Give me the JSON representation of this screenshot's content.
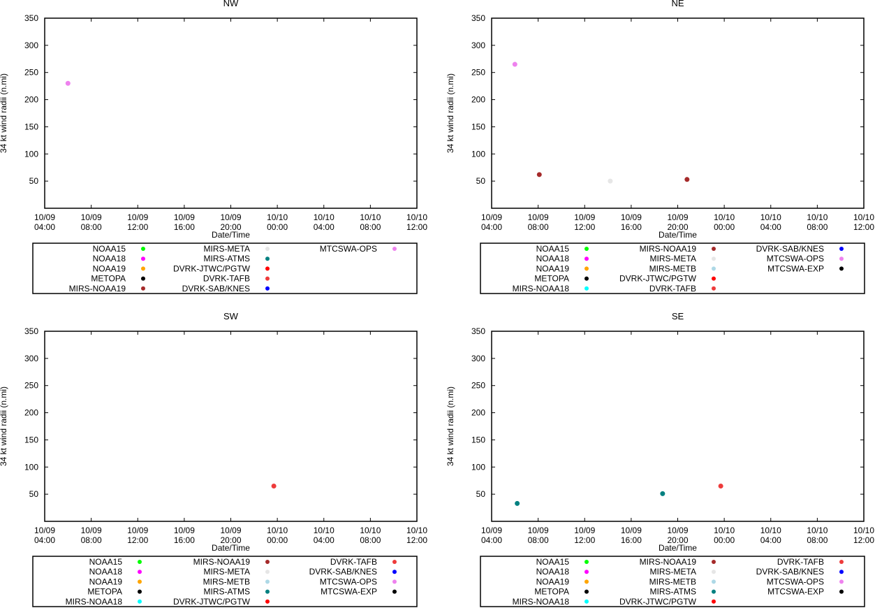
{
  "figure": {
    "xlabel": "Date/Time",
    "ylabel": "34 kt wind radii (n.mi)"
  },
  "colors": {
    "NOAA15": "#00ff00",
    "NOAA18": "#ff00ff",
    "NOAA19": "#ffa500",
    "METOPA": "#000000",
    "MIRS-NOAA18": "#00ffff",
    "MIRS-NOAA19": "#a52a2a",
    "MIRS-META": "#e6e6e6",
    "MIRS-METB": "#add8e6",
    "MIRS-ATMS": "#008080",
    "DVRK-JTWC/PGTW": "#ff0000",
    "DVRK-TAFB": "#ee3b3b",
    "DVRK-SAB/KNES": "#0000ff",
    "MTCSWA-OPS": "#ee82ee",
    "MTCSWA-EXP": "#000000"
  },
  "chart_data": [
    {
      "type": "scatter",
      "title": "NW",
      "xlabel": "Date/Time",
      "ylabel": "34 kt wind radii (n.mi)",
      "x_ticks": [
        [
          "10/09",
          "04:00"
        ],
        [
          "10/09",
          "08:00"
        ],
        [
          "10/09",
          "12:00"
        ],
        [
          "10/09",
          "16:00"
        ],
        [
          "10/09",
          "20:00"
        ],
        [
          "10/10",
          "00:00"
        ],
        [
          "10/10",
          "04:00"
        ],
        [
          "10/10",
          "08:00"
        ],
        [
          "10/10",
          "12:00"
        ]
      ],
      "x_range_hours": [
        0,
        32
      ],
      "ylim": [
        0,
        350
      ],
      "y_ticks": [
        50,
        100,
        150,
        200,
        250,
        300,
        350
      ],
      "legend_columns": [
        [
          "NOAA15",
          "NOAA18",
          "NOAA19",
          "METOPA",
          "MIRS-NOAA19"
        ],
        [
          "MIRS-META",
          "MIRS-ATMS",
          "DVRK-JTWC/PGTW",
          "DVRK-TAFB",
          "DVRK-SAB/KNES"
        ],
        [
          "MTCSWA-OPS"
        ]
      ],
      "points": [
        {
          "series": "MTCSWA-OPS",
          "x_hours": 2,
          "y": 230
        }
      ]
    },
    {
      "type": "scatter",
      "title": "NE",
      "xlabel": "Date/Time",
      "ylabel": "34 kt wind radii (n.mi)",
      "x_ticks": [
        [
          "10/09",
          "04:00"
        ],
        [
          "10/09",
          "08:00"
        ],
        [
          "10/09",
          "12:00"
        ],
        [
          "10/09",
          "16:00"
        ],
        [
          "10/09",
          "20:00"
        ],
        [
          "10/10",
          "00:00"
        ],
        [
          "10/10",
          "04:00"
        ],
        [
          "10/10",
          "08:00"
        ],
        [
          "10/10",
          "12:00"
        ]
      ],
      "x_range_hours": [
        0,
        32
      ],
      "ylim": [
        0,
        350
      ],
      "y_ticks": [
        50,
        100,
        150,
        200,
        250,
        300,
        350
      ],
      "legend_columns": [
        [
          "NOAA15",
          "NOAA18",
          "NOAA19",
          "METOPA",
          "MIRS-NOAA18"
        ],
        [
          "MIRS-NOAA19",
          "MIRS-META",
          "MIRS-METB",
          "DVRK-JTWC/PGTW",
          "DVRK-TAFB"
        ],
        [
          "DVRK-SAB/KNES",
          "MTCSWA-OPS",
          "MTCSWA-EXP"
        ]
      ],
      "points": [
        {
          "series": "MTCSWA-OPS",
          "x_hours": 2,
          "y": 265
        },
        {
          "series": "MIRS-NOAA19",
          "x_hours": 4.1,
          "y": 62
        },
        {
          "series": "MIRS-META",
          "x_hours": 10.2,
          "y": 50
        },
        {
          "series": "MIRS-NOAA19",
          "x_hours": 16.8,
          "y": 53
        }
      ]
    },
    {
      "type": "scatter",
      "title": "SW",
      "xlabel": "Date/Time",
      "ylabel": "34 kt wind radii (n.mi)",
      "x_ticks": [
        [
          "10/09",
          "04:00"
        ],
        [
          "10/09",
          "08:00"
        ],
        [
          "10/09",
          "12:00"
        ],
        [
          "10/09",
          "16:00"
        ],
        [
          "10/09",
          "20:00"
        ],
        [
          "10/10",
          "00:00"
        ],
        [
          "10/10",
          "04:00"
        ],
        [
          "10/10",
          "08:00"
        ],
        [
          "10/10",
          "12:00"
        ]
      ],
      "x_range_hours": [
        0,
        32
      ],
      "ylim": [
        0,
        350
      ],
      "y_ticks": [
        50,
        100,
        150,
        200,
        250,
        300,
        350
      ],
      "legend_columns": [
        [
          "NOAA15",
          "NOAA18",
          "NOAA19",
          "METOPA",
          "MIRS-NOAA18"
        ],
        [
          "MIRS-NOAA19",
          "MIRS-META",
          "MIRS-METB",
          "MIRS-ATMS",
          "DVRK-JTWC/PGTW"
        ],
        [
          "DVRK-TAFB",
          "DVRK-SAB/KNES",
          "MTCSWA-OPS",
          "MTCSWA-EXP"
        ]
      ],
      "points": [
        {
          "series": "DVRK-TAFB",
          "x_hours": 19.7,
          "y": 65
        }
      ]
    },
    {
      "type": "scatter",
      "title": "SE",
      "xlabel": "Date/Time",
      "ylabel": "34 kt wind radii (n.mi)",
      "x_ticks": [
        [
          "10/09",
          "04:00"
        ],
        [
          "10/09",
          "08:00"
        ],
        [
          "10/09",
          "12:00"
        ],
        [
          "10/09",
          "16:00"
        ],
        [
          "10/09",
          "20:00"
        ],
        [
          "10/10",
          "00:00"
        ],
        [
          "10/10",
          "04:00"
        ],
        [
          "10/10",
          "08:00"
        ],
        [
          "10/10",
          "12:00"
        ]
      ],
      "x_range_hours": [
        0,
        32
      ],
      "ylim": [
        0,
        350
      ],
      "y_ticks": [
        50,
        100,
        150,
        200,
        250,
        300,
        350
      ],
      "legend_columns": [
        [
          "NOAA15",
          "NOAA18",
          "NOAA19",
          "METOPA",
          "MIRS-NOAA18"
        ],
        [
          "MIRS-NOAA19",
          "MIRS-META",
          "MIRS-METB",
          "MIRS-ATMS",
          "DVRK-JTWC/PGTW"
        ],
        [
          "DVRK-TAFB",
          "DVRK-SAB/KNES",
          "MTCSWA-OPS",
          "MTCSWA-EXP"
        ]
      ],
      "points": [
        {
          "series": "MIRS-ATMS",
          "x_hours": 2.2,
          "y": 33
        },
        {
          "series": "MIRS-ATMS",
          "x_hours": 14.7,
          "y": 51
        },
        {
          "series": "DVRK-TAFB",
          "x_hours": 19.7,
          "y": 65
        }
      ]
    }
  ]
}
